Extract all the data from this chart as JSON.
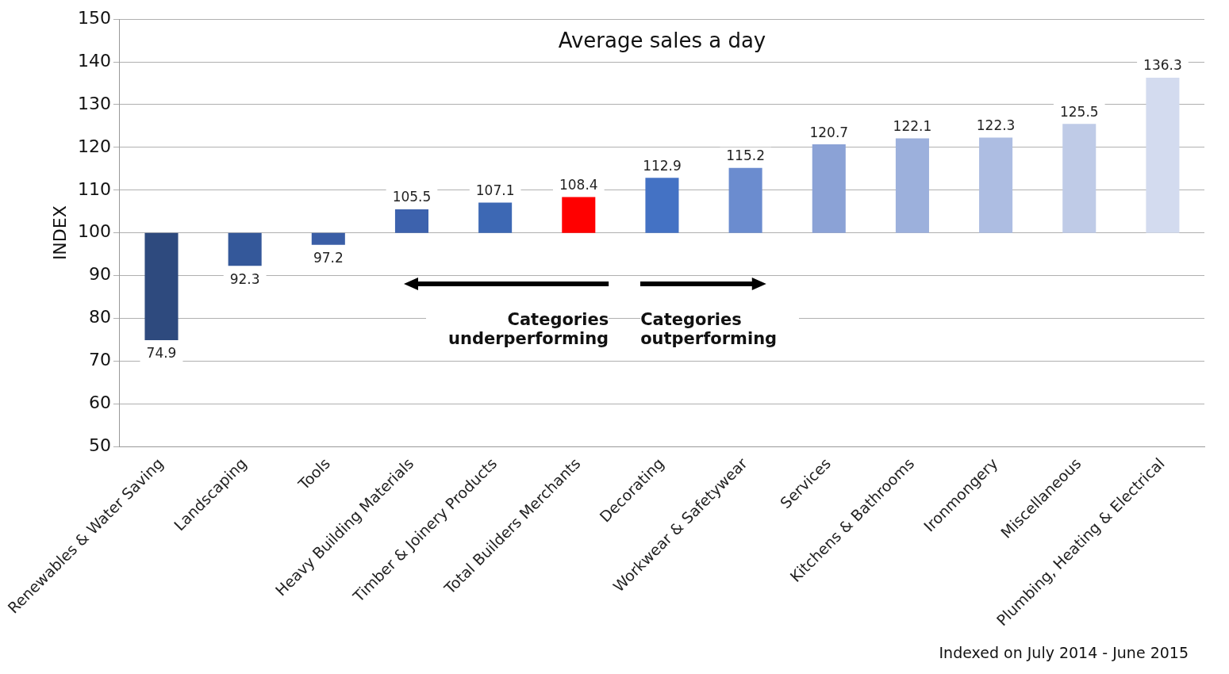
{
  "chart_data": {
    "type": "bar",
    "title": "Average sales a day",
    "ylabel": "INDEX",
    "categories": [
      "Renewables & Water Saving",
      "Landscaping",
      "Tools",
      "Heavy Building Materials",
      "Timber & Joinery Products",
      "Total Builders Merchants",
      "Decorating",
      "Workwear & Safetywear",
      "Services",
      "Kitchens & Bathrooms",
      "Ironmongery",
      "Miscellaneous",
      "Plumbing, Heating & Electrical"
    ],
    "base": [
      100,
      100,
      100,
      100,
      100,
      100,
      100,
      100,
      100,
      100,
      100,
      100,
      100
    ],
    "values": [
      -25.1,
      -7.7,
      -2.8,
      5.5,
      7.1,
      8.4,
      12.9,
      15.2,
      20.7,
      22.1,
      22.3,
      25.5,
      36.3
    ],
    "value_labels": [
      "74.9",
      "92.3",
      "97.2",
      "105.5",
      "107.1",
      "108.4",
      "112.9",
      "115.2",
      "120.7",
      "122.1",
      "122.3",
      "125.5",
      "136.3"
    ],
    "colors": [
      "#2e4a7e",
      "#34589a",
      "#3a5ea6",
      "#3d62ad",
      "#3d68b4",
      "#ff0000",
      "#4472c4",
      "#6b8ccf",
      "#8ba2d6",
      "#9cb0dc",
      "#adbde2",
      "#bfcbe7",
      "#d3dbef"
    ],
    "ylim": [
      50,
      150
    ],
    "yticks": [
      50,
      60,
      70,
      80,
      90,
      100,
      110,
      120,
      130,
      140,
      150
    ],
    "grid": "y",
    "legend": false,
    "annotations": [
      "Categories underperforming",
      "Categories outperforming",
      "Indexed on July 2014 - June 2015"
    ]
  }
}
